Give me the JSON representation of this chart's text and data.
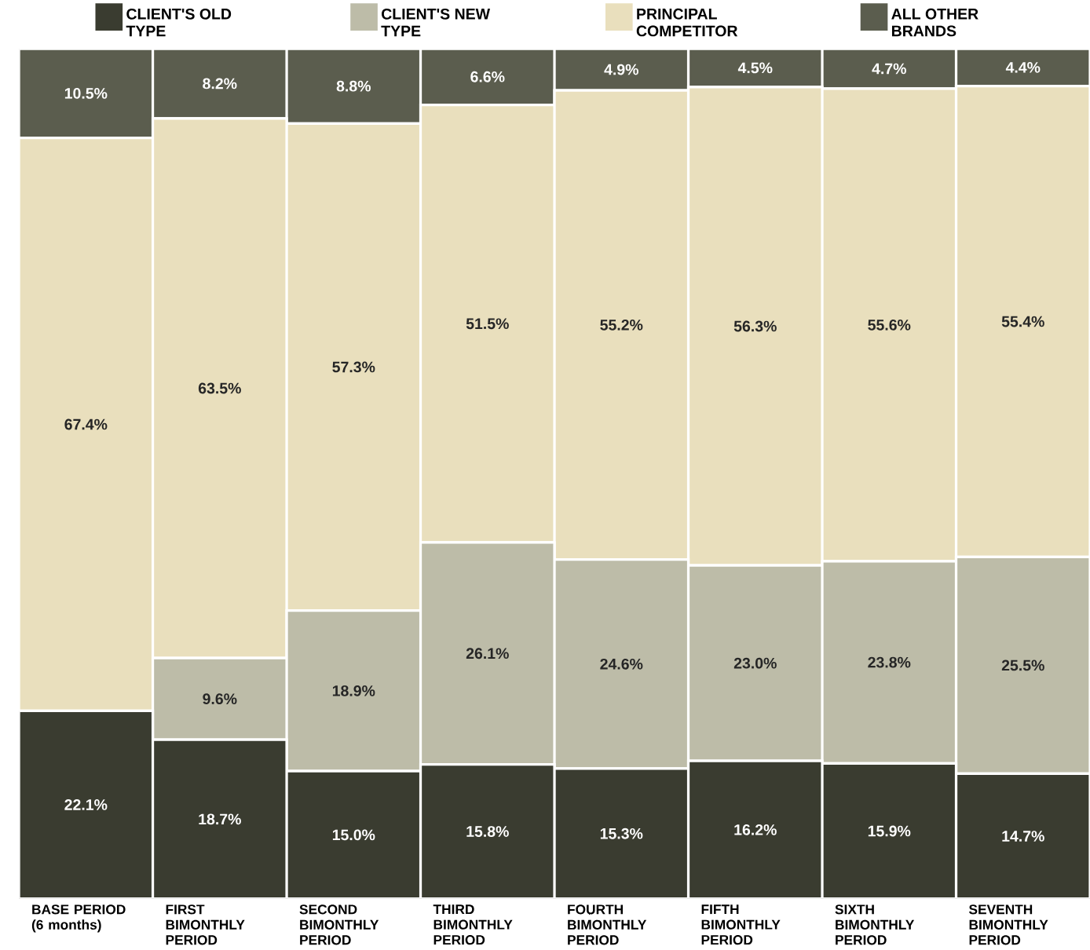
{
  "chart_data": {
    "type": "bar",
    "stacked": true,
    "legend": "top",
    "tick_labels": "x",
    "ylim": [
      0,
      100
    ],
    "categories": [
      "BASE PERIOD (6 months)",
      "FIRST BIMONTHLY PERIOD",
      "SECOND BIMONTHLY PERIOD",
      "THIRD BIMONTHLY PERIOD",
      "FOURTH BIMONTHLY PERIOD",
      "FIFTH BIMONTHLY PERIOD",
      "SIXTH BIMONTHLY PERIOD",
      "SEVENTH BIMONTHLY PERIOD"
    ],
    "series": [
      {
        "name": "CLIENT'S OLD TYPE",
        "color": "#3a3c30",
        "values": [
          22.1,
          18.7,
          15.0,
          15.8,
          15.3,
          16.2,
          15.9,
          14.7
        ],
        "value_labels": [
          "22.1%",
          "18.7%",
          "15.0%",
          "15.8%",
          "15.3%",
          "16.2%",
          "15.9%",
          "14.7%"
        ]
      },
      {
        "name": "CLIENT'S NEW TYPE",
        "color": "#bdbca8",
        "values": [
          null,
          9.6,
          18.9,
          26.1,
          24.6,
          23.0,
          23.8,
          25.5
        ],
        "value_labels": [
          null,
          "9.6%",
          "18.9%",
          "26.1%",
          "24.6%",
          "23.0%",
          "23.8%",
          "25.5%"
        ]
      },
      {
        "name": "PRINCIPAL COMPETITOR",
        "color": "#e9dfbd",
        "values": [
          67.4,
          63.5,
          57.3,
          51.5,
          55.2,
          56.3,
          55.6,
          55.4
        ],
        "value_labels": [
          "67.4%",
          "63.5%",
          "57.3%",
          "51.5%",
          "55.2%",
          "56.3%",
          "55.6%",
          "55.4%"
        ]
      },
      {
        "name": "ALL OTHER BRANDS",
        "color": "#5b5d4e",
        "values": [
          10.5,
          8.2,
          8.8,
          6.6,
          4.9,
          4.5,
          4.7,
          4.4
        ],
        "value_labels": [
          "10.5%",
          "8.2%",
          "8.8%",
          "6.6%",
          "4.9%",
          "4.5%",
          "4.7%",
          "4.4%"
        ]
      }
    ]
  }
}
